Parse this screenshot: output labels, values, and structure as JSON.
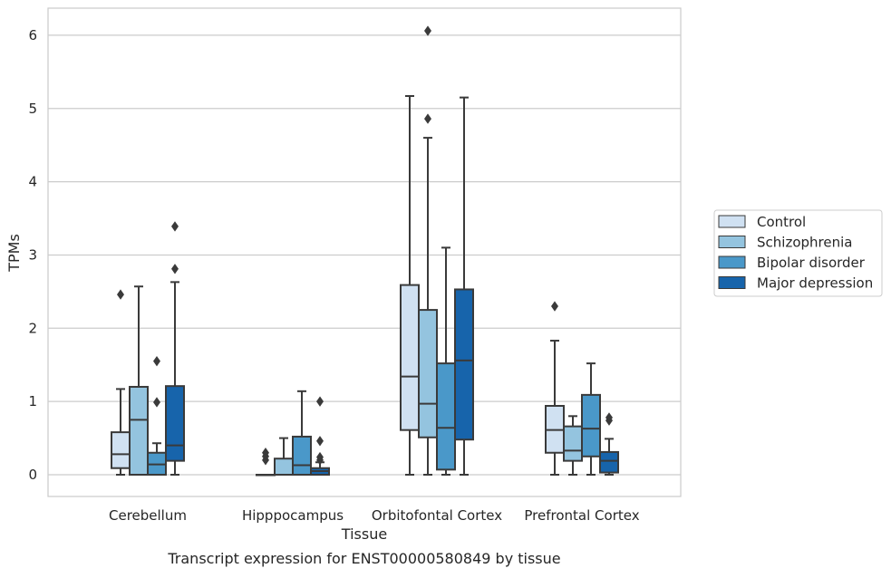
{
  "chart_data": {
    "type": "box",
    "title": "",
    "xlabel": "Tissue",
    "ylabel": "TPMs",
    "caption": "Transcript expression for ENST00000580849 by tissue",
    "ylim": [
      -0.3,
      6.38
    ],
    "yticks": [
      0,
      1,
      2,
      3,
      4,
      5,
      6
    ],
    "grid": "horizontal",
    "legend_position": "right",
    "categories": [
      "Cerebellum",
      "Hipppocampus",
      "Orbitofontal Cortex",
      "Prefrontal Cortex"
    ],
    "series": [
      {
        "name": "Control",
        "color": "#d0e1f2",
        "boxes": [
          {
            "min": 0.0,
            "q1": 0.09,
            "median": 0.28,
            "q3": 0.58,
            "max": 1.17,
            "outliers": [
              2.46
            ]
          },
          {
            "min": 0.0,
            "q1": 0.0,
            "median": 0.0,
            "q3": 0.0,
            "max": 0.0,
            "outliers": [
              0.2,
              0.25,
              0.3
            ]
          },
          {
            "min": 0.0,
            "q1": 0.61,
            "median": 1.34,
            "q3": 2.59,
            "max": 5.17,
            "outliers": []
          },
          {
            "min": 0.0,
            "q1": 0.3,
            "median": 0.61,
            "q3": 0.94,
            "max": 1.83,
            "outliers": [
              2.3
            ]
          }
        ]
      },
      {
        "name": "Schizophrenia",
        "color": "#94c4df",
        "boxes": [
          {
            "min": 0.0,
            "q1": 0.0,
            "median": 0.75,
            "q3": 1.2,
            "max": 2.57,
            "outliers": []
          },
          {
            "min": 0.0,
            "q1": 0.0,
            "median": 0.0,
            "q3": 0.22,
            "max": 0.5,
            "outliers": []
          },
          {
            "min": 0.0,
            "q1": 0.51,
            "median": 0.97,
            "q3": 2.25,
            "max": 4.6,
            "outliers": [
              4.86,
              6.06
            ]
          },
          {
            "min": 0.0,
            "q1": 0.19,
            "median": 0.33,
            "q3": 0.66,
            "max": 0.8,
            "outliers": []
          }
        ]
      },
      {
        "name": "Bipolar disorder",
        "color": "#4a98c9",
        "boxes": [
          {
            "min": 0.0,
            "q1": 0.0,
            "median": 0.14,
            "q3": 0.3,
            "max": 0.43,
            "outliers": [
              0.99,
              1.55
            ]
          },
          {
            "min": 0.0,
            "q1": 0.0,
            "median": 0.13,
            "q3": 0.52,
            "max": 1.14,
            "outliers": []
          },
          {
            "min": 0.0,
            "q1": 0.07,
            "median": 0.64,
            "q3": 1.52,
            "max": 3.1,
            "outliers": []
          },
          {
            "min": 0.0,
            "q1": 0.25,
            "median": 0.63,
            "q3": 1.09,
            "max": 1.52,
            "outliers": []
          }
        ]
      },
      {
        "name": "Major depression",
        "color": "#1764ab",
        "boxes": [
          {
            "min": 0.0,
            "q1": 0.19,
            "median": 0.4,
            "q3": 1.21,
            "max": 2.63,
            "outliers": [
              2.81,
              3.39
            ]
          },
          {
            "min": 0.0,
            "q1": 0.0,
            "median": 0.05,
            "q3": 0.09,
            "max": 0.17,
            "outliers": [
              0.2,
              0.24,
              0.46,
              1.0
            ]
          },
          {
            "min": 0.0,
            "q1": 0.48,
            "median": 1.56,
            "q3": 2.53,
            "max": 5.15,
            "outliers": []
          },
          {
            "min": 0.0,
            "q1": 0.03,
            "median": 0.19,
            "q3": 0.31,
            "max": 0.49,
            "outliers": [
              0.74,
              0.78
            ]
          }
        ]
      }
    ]
  }
}
